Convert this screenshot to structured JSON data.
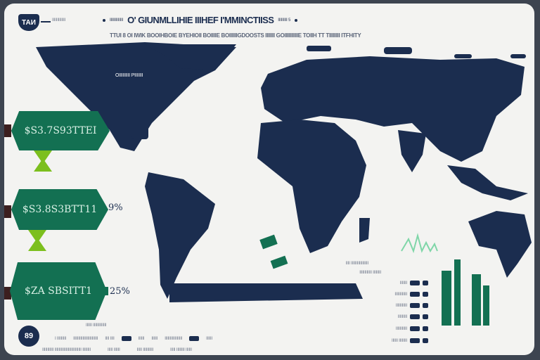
{
  "header": {
    "logo_text": "ТАИ",
    "logo_caption": "IIIIIIIIIIIII",
    "title_left": "IIIIIIIIIIIII",
    "title": "O' GIUNMLLIHIE IIIHEF I'MMINCTIISS",
    "title_right": "IIIIIIIII 5",
    "subtitle": "TTUI 8 OI IWIK BOOIHBOIE BYEHIOII BOIIIIE BOIIIIIIGDOOSTS IIIIIII GOIIIIIIIIIIE TOIIH TT TIIIIIIII ITFHITY"
  },
  "map_labels": {
    "north_america": "OIIIIIIIII PIIIIIII"
  },
  "hexagons": [
    {
      "value": "$S3.7S93TTEI"
    },
    {
      "value": "$S3.8S3BTT11",
      "percent": "9%"
    },
    {
      "value": "$ZA SBSITT1",
      "percent": "25%"
    }
  ],
  "mini_chart": {
    "type": "bar",
    "values": [
      76,
      92,
      71,
      56
    ],
    "color": "#137052"
  },
  "legend_rows": [
    "IIII IIIIIIIIIIIIIIIII",
    "IIIIIIIIIIII IIIIIIII",
    "IIIIIII",
    "IIIIIIIIIIII",
    "IIIIIIIIIII",
    "IIIIIIIII",
    "IIIIIIIIIII",
    "IIIIII IIIIIIII"
  ],
  "footer": {
    "badge": "89",
    "caption_top": "IIIIII IIIIIIIIIIIII",
    "items": [
      "I IIIIIIIII",
      "IIIIIIIIIIIIIIIIIIIIIIII",
      "IIII IIII",
      "IIIIII",
      "IIIIII",
      "IIIIIIIIIIIIIIIII",
      "IIIIII"
    ],
    "notes": [
      "IIIIIIIIIII IIIIIIIIIIIIIIIIIIIIIIIIII IIIIIIII",
      "IIIII IIIIII",
      "IIIII IIIIIIIIII",
      "IIIII IIIIIIII IIIIII"
    ]
  },
  "colors": {
    "navy": "#1b2d4f",
    "green": "#137052",
    "lime": "#7cbf1e",
    "background": "#f3f3f1"
  }
}
